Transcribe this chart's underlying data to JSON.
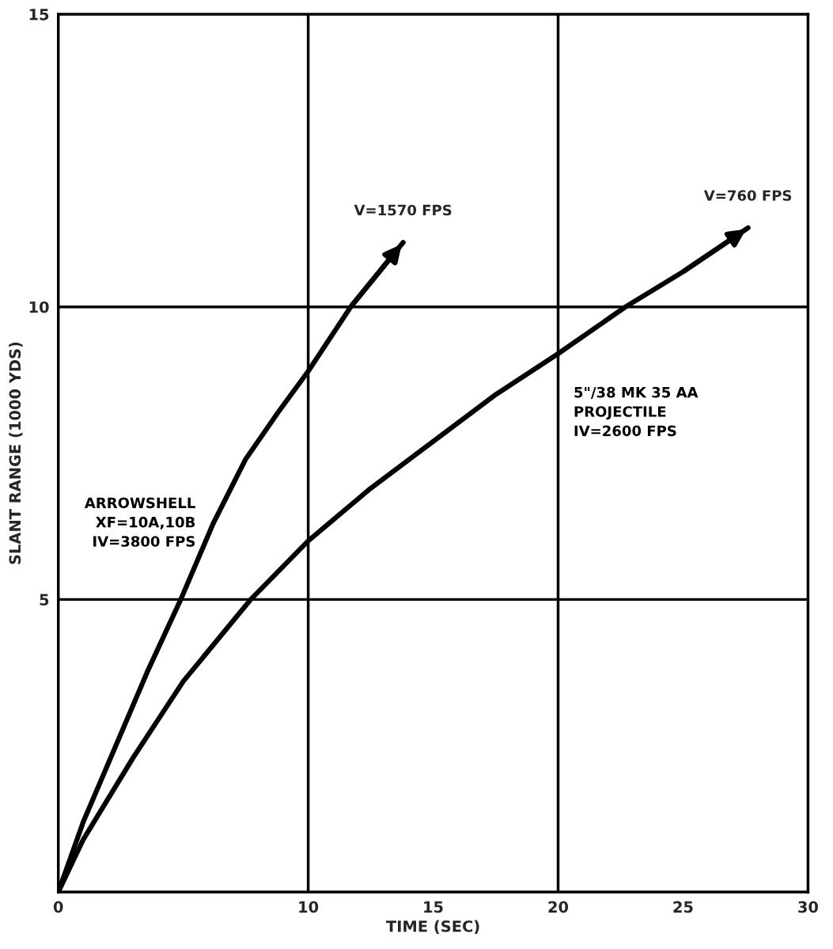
{
  "chart_data": {
    "type": "line",
    "xlabel": "TIME (SEC)",
    "ylabel": "SLANT RANGE (1000 YDS)",
    "xlim": [
      0,
      30
    ],
    "ylim": [
      0,
      15
    ],
    "xticks": [
      0,
      10,
      15,
      20,
      25,
      30
    ],
    "yticks": [
      5,
      10,
      15
    ],
    "grid": false,
    "legend": false,
    "ref_lines": [
      {
        "axis": "x",
        "value": 10
      },
      {
        "axis": "x",
        "value": 20
      },
      {
        "axis": "y",
        "value": 5
      },
      {
        "axis": "y",
        "value": 10
      }
    ],
    "series": [
      {
        "name": "ARROWSHELL\nXF=10A,10B\nIV=3800 FPS",
        "color": "#000000",
        "x": [
          0,
          1,
          2.3,
          3.6,
          4.9,
          6.2,
          7.5,
          8.8,
          10,
          11.7,
          13.8
        ],
        "values": [
          0,
          1.2,
          2.5,
          3.8,
          5,
          6.3,
          7.4,
          8.2,
          8.9,
          10,
          11.1
        ]
      },
      {
        "name": "5\"/38 MK 35 AA\nPROJECTILE\nIV=2600 FPS",
        "color": "#000000",
        "x": [
          0,
          1,
          3,
          5,
          7.7,
          10,
          12.5,
          15,
          17.5,
          20,
          22.7,
          25,
          27.6
        ],
        "values": [
          0,
          0.9,
          2.3,
          3.6,
          5,
          6,
          6.9,
          7.7,
          8.5,
          9.2,
          10,
          10.6,
          11.35
        ]
      }
    ],
    "annotations": [
      {
        "text": "V=1570 FPS",
        "x": 13.8,
        "y": 11.1
      },
      {
        "text": "V=760 FPS",
        "x": 27.6,
        "y": 11.35
      }
    ]
  }
}
